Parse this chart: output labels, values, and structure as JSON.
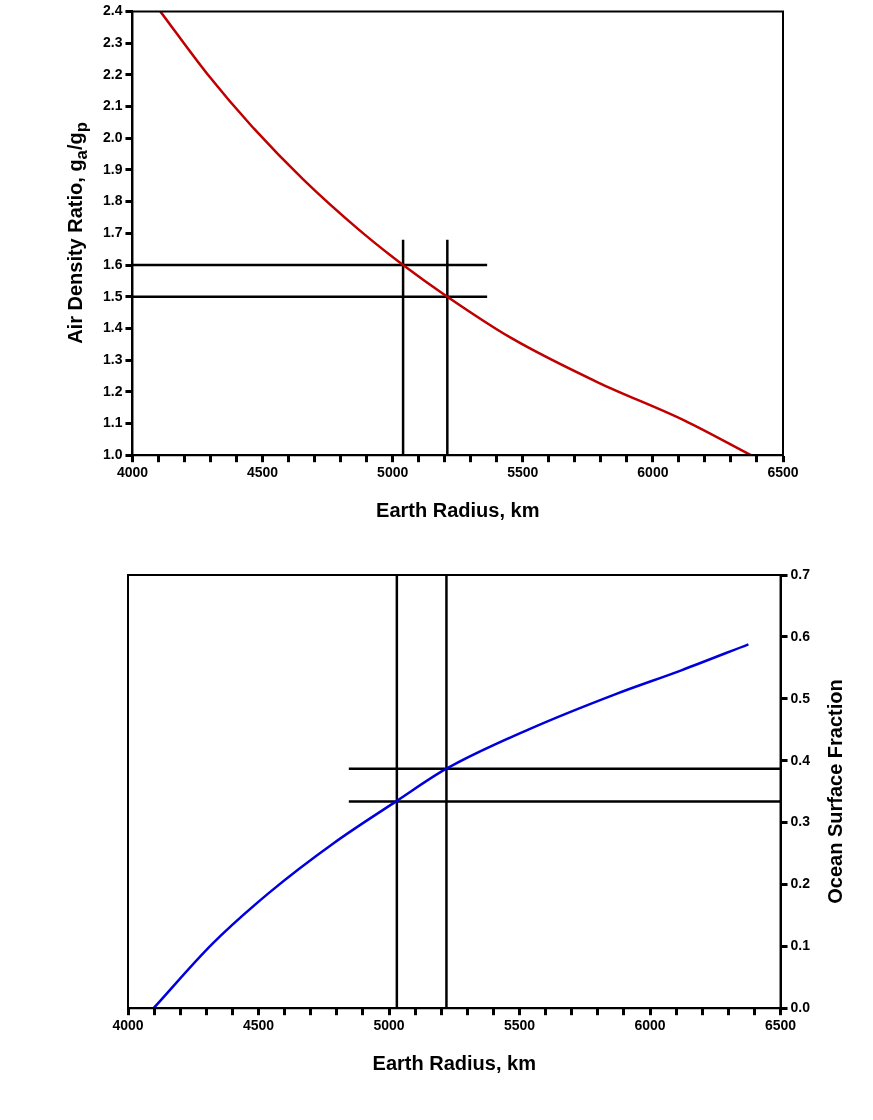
{
  "chart_data": [
    {
      "type": "line",
      "xlabel": "Earth Radius, km",
      "ylabel": "Air Density Ratio, g$_{a}$/g$_{p}$",
      "xlim": [
        4000,
        6500
      ],
      "ylim": [
        1.0,
        2.4
      ],
      "xticks": [
        4000,
        {
          "value": 4100,
          "label": null
        },
        {
          "value": 4200,
          "label": null
        },
        {
          "value": 4300,
          "label": null
        },
        {
          "value": 4400,
          "label": null
        },
        4500,
        {
          "value": 4600,
          "label": null
        },
        {
          "value": 4700,
          "label": null
        },
        {
          "value": 4800,
          "label": null
        },
        {
          "value": 4900,
          "label": null
        },
        5000,
        {
          "value": 5100,
          "label": null
        },
        {
          "value": 5200,
          "label": null
        },
        {
          "value": 5300,
          "label": null
        },
        {
          "value": 5400,
          "label": null
        },
        5500,
        {
          "value": 5600,
          "label": null
        },
        {
          "value": 5700,
          "label": null
        },
        {
          "value": 5800,
          "label": null
        },
        {
          "value": 5900,
          "label": null
        },
        6000,
        {
          "value": 6100,
          "label": null
        },
        {
          "value": 6200,
          "label": null
        },
        {
          "value": 6300,
          "label": null
        },
        {
          "value": 6400,
          "label": null
        },
        6500
      ],
      "yticks": [
        {
          "value": 1.0,
          "label": "1.0"
        },
        1.1,
        1.2,
        1.3,
        1.4,
        1.5,
        1.6,
        1.7,
        1.8,
        1.9,
        {
          "value": 2.0,
          "label": "2.0"
        },
        2.1,
        2.2,
        2.3,
        2.4
      ],
      "series": [
        {
          "color": "#c00000",
          "x": [
            4107,
            4290,
            4456,
            4656,
            4872,
            5040,
            5210,
            5455,
            5788,
            6120,
            6377
          ],
          "values": [
            2.4,
            2.2,
            2.04,
            1.87,
            1.71,
            1.6,
            1.5,
            1.37,
            1.23,
            1.11,
            1.0
          ]
        },
        {
          "color": "#000000",
          "x": [
            4000,
            5363
          ],
          "values": [
            1.6,
            1.6
          ]
        },
        {
          "color": "#000000",
          "x": [
            4000,
            5363
          ],
          "values": [
            1.5,
            1.5
          ]
        },
        {
          "color": "#000000",
          "x": [
            5040,
            5040
          ],
          "values": [
            1.0,
            1.68
          ]
        },
        {
          "color": "#000000",
          "x": [
            5210,
            5210
          ],
          "values": [
            1.0,
            1.68
          ]
        }
      ]
    },
    {
      "type": "line",
      "xlabel": "Earth Radius, km",
      "y2label": "Ocean Surface Fraction",
      "xlim": [
        4000,
        6500
      ],
      "y2lim": [
        0,
        0.7
      ],
      "xticks": [
        4000,
        {
          "value": 4100,
          "label": null
        },
        {
          "value": 4200,
          "label": null
        },
        {
          "value": 4300,
          "label": null
        },
        {
          "value": 4400,
          "label": null
        },
        4500,
        {
          "value": 4600,
          "label": null
        },
        {
          "value": 4700,
          "label": null
        },
        {
          "value": 4800,
          "label": null
        },
        {
          "value": 4900,
          "label": null
        },
        5000,
        {
          "value": 5100,
          "label": null
        },
        {
          "value": 5200,
          "label": null
        },
        {
          "value": 5300,
          "label": null
        },
        {
          "value": 5400,
          "label": null
        },
        5500,
        {
          "value": 5600,
          "label": null
        },
        {
          "value": 5700,
          "label": null
        },
        {
          "value": 5800,
          "label": null
        },
        {
          "value": 5900,
          "label": null
        },
        6000,
        {
          "value": 6100,
          "label": null
        },
        {
          "value": 6200,
          "label": null
        },
        {
          "value": 6300,
          "label": null
        },
        {
          "value": 6400,
          "label": null
        },
        6500
      ],
      "y2ticks": [
        {
          "value": 0,
          "label": "0.0"
        },
        0.1,
        0.2,
        0.3,
        0.4,
        0.5,
        0.6,
        0.7
      ],
      "series": [
        {
          "color": "#0000dd",
          "axis": "y2",
          "x": [
            4098,
            4323,
            4539,
            4789,
            5030,
            5220,
            5538,
            5871,
            6120,
            6377
          ],
          "values": [
            0,
            0.104,
            0.186,
            0.267,
            0.335,
            0.387,
            0.451,
            0.508,
            0.546,
            0.588
          ]
        },
        {
          "color": "#000000",
          "axis": "y2",
          "x": [
            4846,
            6500
          ],
          "values": [
            0.387,
            0.387
          ]
        },
        {
          "color": "#000000",
          "axis": "y2",
          "x": [
            4846,
            6500
          ],
          "values": [
            0.334,
            0.334
          ]
        },
        {
          "color": "#000000",
          "axis": "y2",
          "x": [
            5030,
            5030
          ],
          "values": [
            0,
            0.7
          ]
        },
        {
          "color": "#000000",
          "axis": "y2",
          "x": [
            5220,
            5220
          ],
          "values": [
            0,
            0.7
          ]
        }
      ]
    }
  ]
}
